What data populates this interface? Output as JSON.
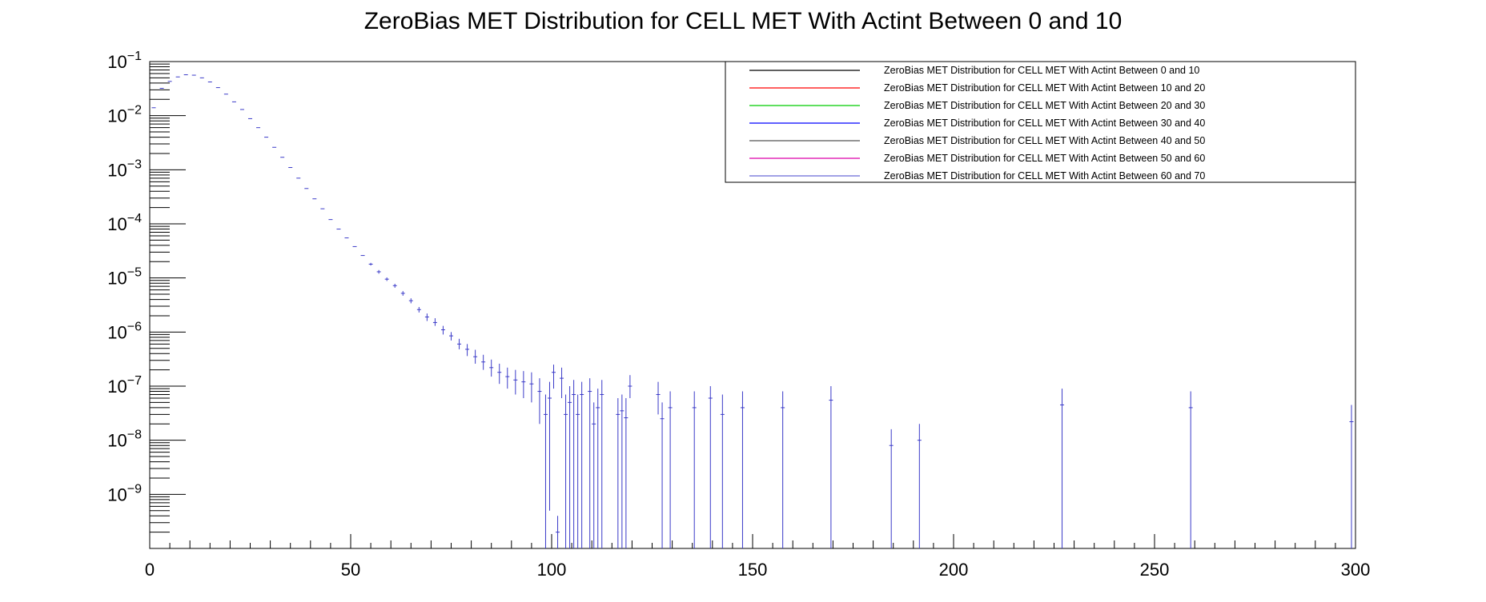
{
  "chart_data": {
    "type": "scatter",
    "title": "ZeroBias MET Distribution for CELL MET With Actint Between 0 and 10",
    "xlabel": "",
    "ylabel": "",
    "xlim": [
      0,
      300
    ],
    "ylim": [
      1e-10,
      0.1
    ],
    "y_scale": "log",
    "grid": false,
    "legend_position": "top-right",
    "x_ticks": [
      "0",
      "50",
      "100",
      "150",
      "200",
      "250",
      "300"
    ],
    "y_tick_exponents": [
      -1,
      -2,
      -3,
      -4,
      -5,
      -6,
      -7,
      -8,
      -9
    ],
    "y_tick_base": "10",
    "legend": [
      {
        "label": "ZeroBias MET Distribution for CELL MET With Actint Between 0 and 10",
        "color": "#000000"
      },
      {
        "label": "ZeroBias MET Distribution for CELL MET With Actint Between 10 and 20",
        "color": "#ff0000"
      },
      {
        "label": "ZeroBias MET Distribution for CELL MET With Actint Between 20 and 30",
        "color": "#00cc00"
      },
      {
        "label": "ZeroBias MET Distribution for CELL MET With Actint Between 30 and 40",
        "color": "#0000ff"
      },
      {
        "label": "ZeroBias MET Distribution for CELL MET With Actint Between 40 and 50",
        "color": "#555555"
      },
      {
        "label": "ZeroBias MET Distribution for CELL MET With Actint Between 50 and 60",
        "color": "#dd00aa"
      },
      {
        "label": "ZeroBias MET Distribution for CELL MET With Actint Between 60 and 70",
        "color": "#6a6ad8"
      }
    ],
    "series": [
      {
        "color": "#3a3ac8",
        "points": [
          {
            "x": 1,
            "y": 0.014,
            "lo": 0.014,
            "hi": 0.014
          },
          {
            "x": 3,
            "y": 0.032,
            "lo": 0.032,
            "hi": 0.032
          },
          {
            "x": 5,
            "y": 0.043,
            "lo": 0.043,
            "hi": 0.043
          },
          {
            "x": 7,
            "y": 0.052,
            "lo": 0.052,
            "hi": 0.052
          },
          {
            "x": 9,
            "y": 0.057,
            "lo": 0.057,
            "hi": 0.057
          },
          {
            "x": 11,
            "y": 0.056,
            "lo": 0.056,
            "hi": 0.056
          },
          {
            "x": 13,
            "y": 0.05,
            "lo": 0.05,
            "hi": 0.05
          },
          {
            "x": 15,
            "y": 0.042,
            "lo": 0.042,
            "hi": 0.042
          },
          {
            "x": 17,
            "y": 0.033,
            "lo": 0.033,
            "hi": 0.033
          },
          {
            "x": 19,
            "y": 0.025,
            "lo": 0.025,
            "hi": 0.025
          },
          {
            "x": 21,
            "y": 0.018,
            "lo": 0.018,
            "hi": 0.018
          },
          {
            "x": 23,
            "y": 0.013,
            "lo": 0.013,
            "hi": 0.013
          },
          {
            "x": 25,
            "y": 0.0088,
            "lo": 0.0088,
            "hi": 0.0088
          },
          {
            "x": 27,
            "y": 0.006,
            "lo": 0.006,
            "hi": 0.006
          },
          {
            "x": 29,
            "y": 0.004,
            "lo": 0.004,
            "hi": 0.004
          },
          {
            "x": 31,
            "y": 0.0026,
            "lo": 0.0026,
            "hi": 0.0026
          },
          {
            "x": 33,
            "y": 0.0017,
            "lo": 0.0017,
            "hi": 0.0017
          },
          {
            "x": 35,
            "y": 0.0011,
            "lo": 0.0011,
            "hi": 0.0011
          },
          {
            "x": 37,
            "y": 0.0007,
            "lo": 0.0007,
            "hi": 0.0007
          },
          {
            "x": 39,
            "y": 0.00045,
            "lo": 0.00045,
            "hi": 0.00045
          },
          {
            "x": 41,
            "y": 0.00029,
            "lo": 0.00029,
            "hi": 0.00029
          },
          {
            "x": 43,
            "y": 0.00019,
            "lo": 0.00019,
            "hi": 0.00019
          },
          {
            "x": 45,
            "y": 0.00012,
            "lo": 0.00012,
            "hi": 0.00012
          },
          {
            "x": 47,
            "y": 8e-05,
            "lo": 8e-05,
            "hi": 8e-05
          },
          {
            "x": 49,
            "y": 5.5e-05,
            "lo": 5.5e-05,
            "hi": 5.5e-05
          },
          {
            "x": 51,
            "y": 3.8e-05,
            "lo": 3.8e-05,
            "hi": 3.8e-05
          },
          {
            "x": 53,
            "y": 2.6e-05,
            "lo": 2.6e-05,
            "hi": 2.6e-05
          },
          {
            "x": 55,
            "y": 1.8e-05,
            "lo": 1.7e-05,
            "hi": 1.9e-05
          },
          {
            "x": 57,
            "y": 1.3e-05,
            "lo": 1.2e-05,
            "hi": 1.4e-05
          },
          {
            "x": 59,
            "y": 9.5e-06,
            "lo": 8.8e-06,
            "hi": 1.02e-05
          },
          {
            "x": 61,
            "y": 7.2e-06,
            "lo": 6.6e-06,
            "hi": 7.8e-06
          },
          {
            "x": 63,
            "y": 5.2e-06,
            "lo": 4.7e-06,
            "hi": 5.7e-06
          },
          {
            "x": 65,
            "y": 3.8e-06,
            "lo": 3.4e-06,
            "hi": 4.2e-06
          },
          {
            "x": 67,
            "y": 2.6e-06,
            "lo": 2.3e-06,
            "hi": 2.9e-06
          },
          {
            "x": 69,
            "y": 1.9e-06,
            "lo": 1.6e-06,
            "hi": 2.2e-06
          },
          {
            "x": 71,
            "y": 1.5e-06,
            "lo": 1.3e-06,
            "hi": 1.8e-06
          },
          {
            "x": 73,
            "y": 1.1e-06,
            "lo": 9e-07,
            "hi": 1.3e-06
          },
          {
            "x": 75,
            "y": 8.5e-07,
            "lo": 7e-07,
            "hi": 1e-06
          },
          {
            "x": 77,
            "y": 6e-07,
            "lo": 4.8e-07,
            "hi": 7.5e-07
          },
          {
            "x": 79,
            "y": 4.8e-07,
            "lo": 3.6e-07,
            "hi": 6e-07
          },
          {
            "x": 81,
            "y": 3.5e-07,
            "lo": 2.6e-07,
            "hi": 4.7e-07
          },
          {
            "x": 83,
            "y": 2.8e-07,
            "lo": 2e-07,
            "hi": 3.8e-07
          },
          {
            "x": 85,
            "y": 2.2e-07,
            "lo": 1.5e-07,
            "hi": 3.1e-07
          },
          {
            "x": 87,
            "y": 1.8e-07,
            "lo": 1.1e-07,
            "hi": 2.6e-07
          },
          {
            "x": 89,
            "y": 1.5e-07,
            "lo": 9e-08,
            "hi": 2.2e-07
          },
          {
            "x": 91,
            "y": 1.3e-07,
            "lo": 7e-08,
            "hi": 2e-07
          },
          {
            "x": 93,
            "y": 1.2e-07,
            "lo": 6e-08,
            "hi": 1.9e-07
          },
          {
            "x": 95,
            "y": 1.1e-07,
            "lo": 5e-08,
            "hi": 1.8e-07
          },
          {
            "x": 97,
            "y": 8e-08,
            "lo": 2e-08,
            "hi": 1.4e-07
          },
          {
            "x": 98.5,
            "y": 3e-08,
            "lo": 1e-10,
            "hi": 7e-08
          },
          {
            "x": 99.5,
            "y": 6e-08,
            "lo": 5e-10,
            "hi": 1.2e-07
          },
          {
            "x": 100.5,
            "y": 1.8e-07,
            "lo": 9e-08,
            "hi": 2.5e-07
          },
          {
            "x": 101.5,
            "y": 2e-10,
            "lo": 1e-10,
            "hi": 4e-10
          },
          {
            "x": 102.5,
            "y": 1.4e-07,
            "lo": 6e-08,
            "hi": 2.2e-07
          },
          {
            "x": 103.5,
            "y": 3e-08,
            "lo": 1e-10,
            "hi": 7e-08
          },
          {
            "x": 104.5,
            "y": 5e-08,
            "lo": 1e-10,
            "hi": 1e-07
          },
          {
            "x": 105.5,
            "y": 7e-08,
            "lo": 1e-10,
            "hi": 1.3e-07
          },
          {
            "x": 106.5,
            "y": 3e-08,
            "lo": 1e-10,
            "hi": 7e-08
          },
          {
            "x": 107.5,
            "y": 7e-08,
            "lo": 1e-10,
            "hi": 1.2e-07
          },
          {
            "x": 109.5,
            "y": 8e-08,
            "lo": 1e-10,
            "hi": 1.4e-07
          },
          {
            "x": 110.5,
            "y": 2e-08,
            "lo": 1e-10,
            "hi": 5e-08
          },
          {
            "x": 111.5,
            "y": 4e-08,
            "lo": 1e-10,
            "hi": 9e-08
          },
          {
            "x": 112.5,
            "y": 7e-08,
            "lo": 1e-10,
            "hi": 1.3e-07
          },
          {
            "x": 116.5,
            "y": 3e-08,
            "lo": 1e-10,
            "hi": 6e-08
          },
          {
            "x": 117.5,
            "y": 3.5e-08,
            "lo": 1e-10,
            "hi": 7e-08
          },
          {
            "x": 118.5,
            "y": 2.6e-08,
            "lo": 1e-10,
            "hi": 6e-08
          },
          {
            "x": 119.5,
            "y": 1e-07,
            "lo": 6e-08,
            "hi": 1.6e-07
          },
          {
            "x": 126.5,
            "y": 7e-08,
            "lo": 3e-08,
            "hi": 1.2e-07
          },
          {
            "x": 127.5,
            "y": 2.5e-08,
            "lo": 1e-10,
            "hi": 5e-08
          },
          {
            "x": 129.5,
            "y": 4e-08,
            "lo": 1e-10,
            "hi": 8e-08
          },
          {
            "x": 135.5,
            "y": 4e-08,
            "lo": 1e-10,
            "hi": 8e-08
          },
          {
            "x": 139.5,
            "y": 6e-08,
            "lo": 1e-10,
            "hi": 1e-07
          },
          {
            "x": 142.5,
            "y": 3e-08,
            "lo": 1e-10,
            "hi": 7e-08
          },
          {
            "x": 147.5,
            "y": 4e-08,
            "lo": 1e-10,
            "hi": 8e-08
          },
          {
            "x": 157.5,
            "y": 4e-08,
            "lo": 1e-10,
            "hi": 8e-08
          },
          {
            "x": 169.5,
            "y": 5.5e-08,
            "lo": 1e-10,
            "hi": 1e-07
          },
          {
            "x": 184.5,
            "y": 8e-09,
            "lo": 1e-10,
            "hi": 1.6e-08
          },
          {
            "x": 191.5,
            "y": 1e-08,
            "lo": 1e-10,
            "hi": 2e-08
          },
          {
            "x": 227,
            "y": 4.5e-08,
            "lo": 1e-10,
            "hi": 9e-08
          },
          {
            "x": 259,
            "y": 4e-08,
            "lo": 1e-10,
            "hi": 8e-08
          },
          {
            "x": 299,
            "y": 2.2e-08,
            "lo": 1e-10,
            "hi": 4.5e-08
          }
        ]
      }
    ]
  }
}
